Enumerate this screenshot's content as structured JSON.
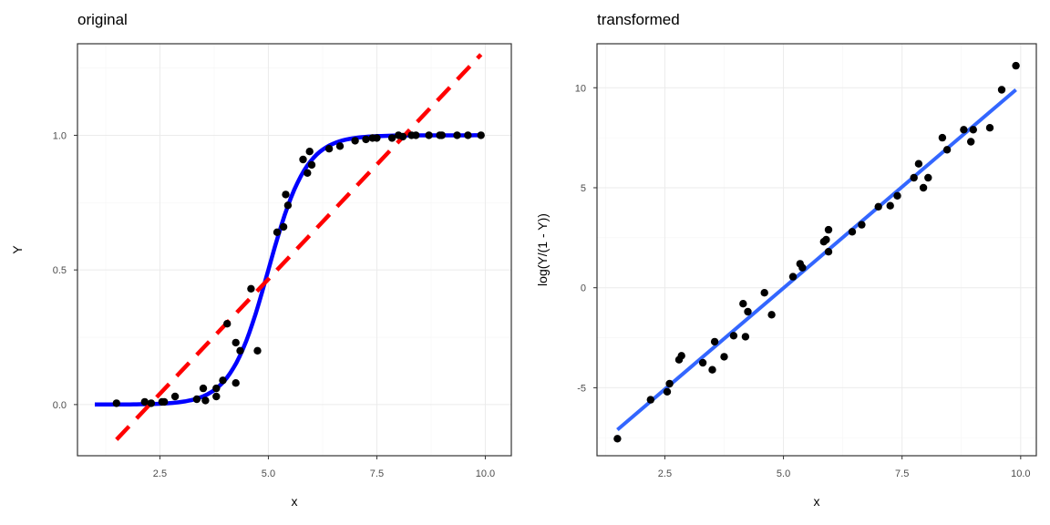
{
  "chart_data": [
    {
      "type": "scatter",
      "title": "original",
      "xlabel": "x",
      "ylabel": "Y",
      "xlim": [
        0.6,
        10.6
      ],
      "ylim": [
        -0.19,
        1.34
      ],
      "x_ticks": [
        2.5,
        5.0,
        7.5,
        10.0
      ],
      "x_tick_labels": [
        "2.5",
        "5.0",
        "7.5",
        "10.0"
      ],
      "y_ticks": [
        0.0,
        0.5,
        1.0
      ],
      "y_tick_labels": [
        "0.0",
        "0.5",
        "1.0"
      ],
      "grid": true,
      "points": [
        [
          1.5,
          0.005
        ],
        [
          2.15,
          0.01
        ],
        [
          2.3,
          0.005
        ],
        [
          2.55,
          0.01
        ],
        [
          2.6,
          0.01
        ],
        [
          2.85,
          0.03
        ],
        [
          3.35,
          0.02
        ],
        [
          3.55,
          0.015
        ],
        [
          3.5,
          0.06
        ],
        [
          3.8,
          0.03
        ],
        [
          3.8,
          0.06
        ],
        [
          3.95,
          0.09
        ],
        [
          4.05,
          0.3
        ],
        [
          4.25,
          0.08
        ],
        [
          4.25,
          0.23
        ],
        [
          4.35,
          0.2
        ],
        [
          4.6,
          0.43
        ],
        [
          4.75,
          0.2
        ],
        [
          5.2,
          0.64
        ],
        [
          5.35,
          0.66
        ],
        [
          5.4,
          0.78
        ],
        [
          5.45,
          0.74
        ],
        [
          5.8,
          0.91
        ],
        [
          5.9,
          0.86
        ],
        [
          5.95,
          0.94
        ],
        [
          6.0,
          0.89
        ],
        [
          6.4,
          0.95
        ],
        [
          6.65,
          0.96
        ],
        [
          7.0,
          0.98
        ],
        [
          7.25,
          0.985
        ],
        [
          7.4,
          0.99
        ],
        [
          7.5,
          0.99
        ],
        [
          7.85,
          0.99
        ],
        [
          8.0,
          1.0
        ],
        [
          8.1,
          0.995
        ],
        [
          8.3,
          1.0
        ],
        [
          8.4,
          1.0
        ],
        [
          8.7,
          1.0
        ],
        [
          8.95,
          1.0
        ],
        [
          9.0,
          1.0
        ],
        [
          9.35,
          1.0
        ],
        [
          9.6,
          1.0
        ],
        [
          9.9,
          1.0
        ]
      ],
      "lines": [
        {
          "kind": "logistic",
          "color": "#0000ff",
          "style": "solid",
          "x_range": [
            1.0,
            9.9
          ]
        },
        {
          "kind": "linear",
          "color": "#ff0000",
          "style": "dashed",
          "x_range": [
            1.5,
            9.9
          ]
        }
      ]
    },
    {
      "type": "scatter",
      "title": "transformed",
      "xlabel": "x",
      "ylabel": "log(Y/(1 - Y))",
      "xlim": [
        1.07,
        10.33
      ],
      "ylim": [
        -8.4,
        12.2
      ],
      "x_ticks": [
        2.5,
        5.0,
        7.5,
        10.0
      ],
      "x_tick_labels": [
        "2.5",
        "5.0",
        "7.5",
        "10.0"
      ],
      "y_ticks": [
        -5,
        0,
        5,
        10
      ],
      "y_tick_labels": [
        "-5",
        "0",
        "5",
        "10"
      ],
      "grid": true,
      "points": [
        [
          1.5,
          -7.55
        ],
        [
          2.2,
          -5.6
        ],
        [
          2.55,
          -5.2
        ],
        [
          2.6,
          -4.8
        ],
        [
          2.8,
          -3.6
        ],
        [
          2.85,
          -3.4
        ],
        [
          3.3,
          -3.75
        ],
        [
          3.5,
          -4.1
        ],
        [
          3.55,
          -2.7
        ],
        [
          3.75,
          -3.45
        ],
        [
          3.95,
          -2.4
        ],
        [
          4.15,
          -0.8
        ],
        [
          4.2,
          -2.45
        ],
        [
          4.25,
          -1.2
        ],
        [
          4.6,
          -0.25
        ],
        [
          4.75,
          -1.35
        ],
        [
          5.2,
          0.55
        ],
        [
          5.35,
          1.2
        ],
        [
          5.4,
          1.0
        ],
        [
          5.85,
          2.3
        ],
        [
          5.9,
          2.4
        ],
        [
          5.95,
          2.9
        ],
        [
          5.95,
          1.8
        ],
        [
          6.45,
          2.8
        ],
        [
          6.65,
          3.15
        ],
        [
          7.0,
          4.05
        ],
        [
          7.25,
          4.1
        ],
        [
          7.4,
          4.6
        ],
        [
          7.75,
          5.5
        ],
        [
          7.85,
          6.2
        ],
        [
          7.95,
          5.0
        ],
        [
          8.05,
          5.5
        ],
        [
          8.35,
          7.5
        ],
        [
          8.45,
          6.9
        ],
        [
          8.8,
          7.9
        ],
        [
          8.95,
          7.3
        ],
        [
          9.0,
          7.9
        ],
        [
          9.35,
          8.0
        ],
        [
          9.6,
          9.9
        ],
        [
          9.9,
          11.1
        ]
      ],
      "lines": [
        {
          "kind": "linear_fit",
          "color": "#3366ff",
          "style": "solid",
          "x_range": [
            1.5,
            9.9
          ]
        }
      ]
    }
  ]
}
